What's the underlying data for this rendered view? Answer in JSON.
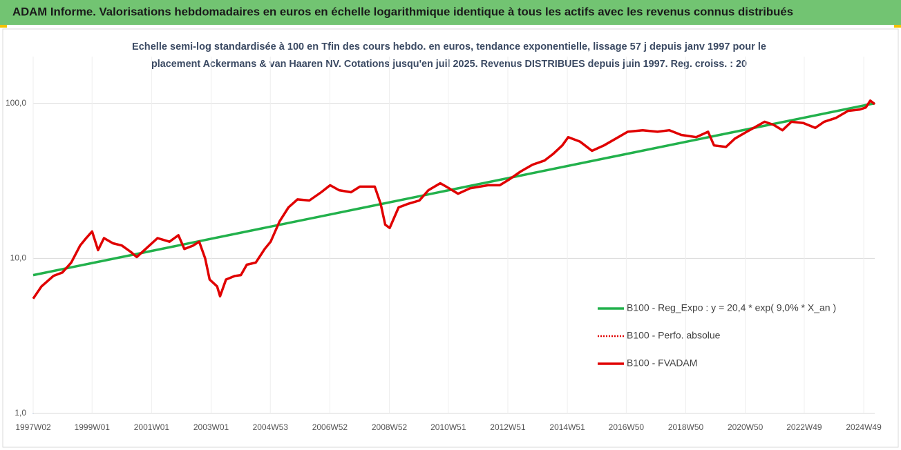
{
  "header": {
    "title": "ADAM Informe. Valorisations hebdomadaires en euros en échelle logarithmique identique à tous les actifs avec les revenus connus distribués"
  },
  "chart_data": {
    "type": "line",
    "title": [
      "Echelle semi-log standardisée à 100 en Tfin des cours hebdo. en euros, tendance exponentielle, lissage 57 j depuis janv 1997 pour le",
      "placement Ackermans & van Haaren NV. Cotations jusqu'en juil 2025. Revenus DISTRIBUES depuis juin 1997. Reg. croiss. : 20"
    ],
    "log_scale_y": true,
    "grid": true,
    "legend": "right",
    "xlim": [
      1997.02,
      2025.3
    ],
    "ylim": [
      1,
      200
    ],
    "xticks": [
      {
        "value": 1997.02,
        "label": "1997W02"
      },
      {
        "value": 1999.0,
        "label": "1999W01"
      },
      {
        "value": 2001.0,
        "label": "2001W01"
      },
      {
        "value": 2003.0,
        "label": "2003W01"
      },
      {
        "value": 2004.99,
        "label": "2004W53"
      },
      {
        "value": 2006.99,
        "label": "2006W52"
      },
      {
        "value": 2008.99,
        "label": "2008W52"
      },
      {
        "value": 2010.97,
        "label": "2010W51"
      },
      {
        "value": 2012.97,
        "label": "2012W51"
      },
      {
        "value": 2014.97,
        "label": "2014W51"
      },
      {
        "value": 2016.95,
        "label": "2016W50"
      },
      {
        "value": 2018.95,
        "label": "2018W50"
      },
      {
        "value": 2020.95,
        "label": "2020W50"
      },
      {
        "value": 2022.93,
        "label": "2022W49"
      },
      {
        "value": 2024.93,
        "label": "2024W49"
      }
    ],
    "yticks": [
      {
        "value": 1,
        "label": "1,0"
      },
      {
        "value": 10,
        "label": "10,0"
      },
      {
        "value": 100,
        "label": "100,0"
      }
    ],
    "series": [
      {
        "name": "B100 - Reg_Expo : y = 20,4 * exp( 9,0% *  X_an )",
        "color": "#22b14c",
        "line_style": "solid",
        "x": [
          1997.02,
          2025.3
        ],
        "values": [
          7.8,
          100
        ]
      },
      {
        "name": "B100 - Perfo. absolue",
        "color": "#e00000",
        "line_style": "dotted",
        "x": [
          1997.02,
          1997.3,
          1997.7,
          1998.0,
          1998.3,
          1998.6,
          1998.8,
          1999.0,
          1999.2,
          1999.4,
          1999.7,
          2000.0,
          2000.3,
          2000.5,
          2000.8,
          2001.2,
          2001.6,
          2001.9,
          2002.1,
          2002.4,
          2002.6,
          2002.8,
          2002.95,
          2003.2,
          2003.3,
          2003.5,
          2003.8,
          2004.0,
          2004.2,
          2004.5,
          2004.8,
          2005.0,
          2005.3,
          2005.6,
          2005.9,
          2006.3,
          2006.7,
          2007.0,
          2007.3,
          2007.7,
          2008.0,
          2008.5,
          2008.7,
          2008.85,
          2009.0,
          2009.3,
          2009.6,
          2010.0,
          2010.3,
          2010.7,
          2010.9,
          2011.3,
          2011.7,
          2012.3,
          2012.7,
          2013.0,
          2013.4,
          2013.8,
          2014.2,
          2014.5,
          2014.8,
          2015.0,
          2015.4,
          2015.8,
          2016.2,
          2016.6,
          2017.0,
          2017.5,
          2018.0,
          2018.4,
          2018.8,
          2019.3,
          2019.7,
          2019.9,
          2020.3,
          2020.6,
          2021.0,
          2021.3,
          2021.6,
          2021.9,
          2022.2,
          2022.5,
          2022.9,
          2023.3,
          2023.6,
          2024.0,
          2024.4,
          2024.8,
          2025.0,
          2025.15,
          2025.3
        ],
        "values": [
          5.5,
          6.6,
          7.7,
          8.1,
          9.4,
          12.1,
          13.5,
          14.9,
          11.3,
          13.5,
          12.5,
          12.1,
          11.0,
          10.2,
          11.5,
          13.5,
          12.8,
          14.1,
          11.5,
          12.1,
          12.8,
          10.0,
          7.3,
          6.6,
          5.7,
          7.3,
          7.7,
          7.8,
          9.1,
          9.4,
          11.5,
          12.8,
          17.3,
          21.3,
          24.0,
          23.6,
          26.7,
          29.6,
          27.5,
          26.7,
          29.0,
          29.0,
          22.4,
          16.5,
          15.7,
          21.3,
          22.4,
          23.6,
          27.5,
          30.5,
          29.0,
          26.1,
          28.3,
          29.6,
          29.6,
          32.1,
          36.3,
          40.2,
          42.7,
          47.3,
          53.5,
          60.5,
          56.5,
          49.4,
          53.5,
          59.2,
          65.5,
          67.0,
          65.5,
          67.0,
          62.5,
          60.5,
          65.5,
          53.5,
          52.3,
          59.2,
          65.5,
          70.5,
          76.0,
          72.6,
          67.0,
          76.0,
          74.6,
          69.4,
          76.0,
          80.5,
          89.3,
          91.2,
          94.0,
          104.0,
          98.7
        ]
      },
      {
        "name": "B100 - FVADAM",
        "color": "#e00000",
        "line_style": "solid",
        "x": [
          1997.02,
          1997.3,
          1997.7,
          1998.0,
          1998.3,
          1998.6,
          1998.8,
          1999.0,
          1999.2,
          1999.4,
          1999.7,
          2000.0,
          2000.3,
          2000.5,
          2000.8,
          2001.2,
          2001.6,
          2001.9,
          2002.1,
          2002.4,
          2002.6,
          2002.8,
          2002.95,
          2003.2,
          2003.3,
          2003.5,
          2003.8,
          2004.0,
          2004.2,
          2004.5,
          2004.8,
          2005.0,
          2005.3,
          2005.6,
          2005.9,
          2006.3,
          2006.7,
          2007.0,
          2007.3,
          2007.7,
          2008.0,
          2008.5,
          2008.7,
          2008.85,
          2009.0,
          2009.3,
          2009.6,
          2010.0,
          2010.3,
          2010.7,
          2010.9,
          2011.3,
          2011.7,
          2012.3,
          2012.7,
          2013.0,
          2013.4,
          2013.8,
          2014.2,
          2014.5,
          2014.8,
          2015.0,
          2015.4,
          2015.8,
          2016.2,
          2016.6,
          2017.0,
          2017.5,
          2018.0,
          2018.4,
          2018.8,
          2019.3,
          2019.7,
          2019.9,
          2020.3,
          2020.6,
          2021.0,
          2021.3,
          2021.6,
          2021.9,
          2022.2,
          2022.5,
          2022.9,
          2023.3,
          2023.6,
          2024.0,
          2024.4,
          2024.8,
          2025.0,
          2025.15,
          2025.3
        ],
        "values": [
          5.5,
          6.6,
          7.7,
          8.1,
          9.4,
          12.1,
          13.5,
          14.9,
          11.3,
          13.5,
          12.5,
          12.1,
          11.0,
          10.2,
          11.5,
          13.5,
          12.8,
          14.1,
          11.5,
          12.1,
          12.8,
          10.0,
          7.3,
          6.6,
          5.7,
          7.3,
          7.7,
          7.8,
          9.1,
          9.4,
          11.5,
          12.8,
          17.3,
          21.3,
          24.0,
          23.6,
          26.7,
          29.6,
          27.5,
          26.7,
          29.0,
          29.0,
          22.4,
          16.5,
          15.7,
          21.3,
          22.4,
          23.6,
          27.5,
          30.5,
          29.0,
          26.1,
          28.3,
          29.6,
          29.6,
          32.1,
          36.3,
          40.2,
          42.7,
          47.3,
          53.5,
          60.5,
          56.5,
          49.4,
          53.5,
          59.2,
          65.5,
          67.0,
          65.5,
          67.0,
          62.5,
          60.5,
          65.5,
          53.5,
          52.3,
          59.2,
          65.5,
          70.5,
          76.0,
          72.6,
          67.0,
          76.0,
          74.6,
          69.4,
          76.0,
          80.5,
          89.3,
          91.2,
          94.0,
          104.0,
          98.7
        ]
      }
    ]
  }
}
